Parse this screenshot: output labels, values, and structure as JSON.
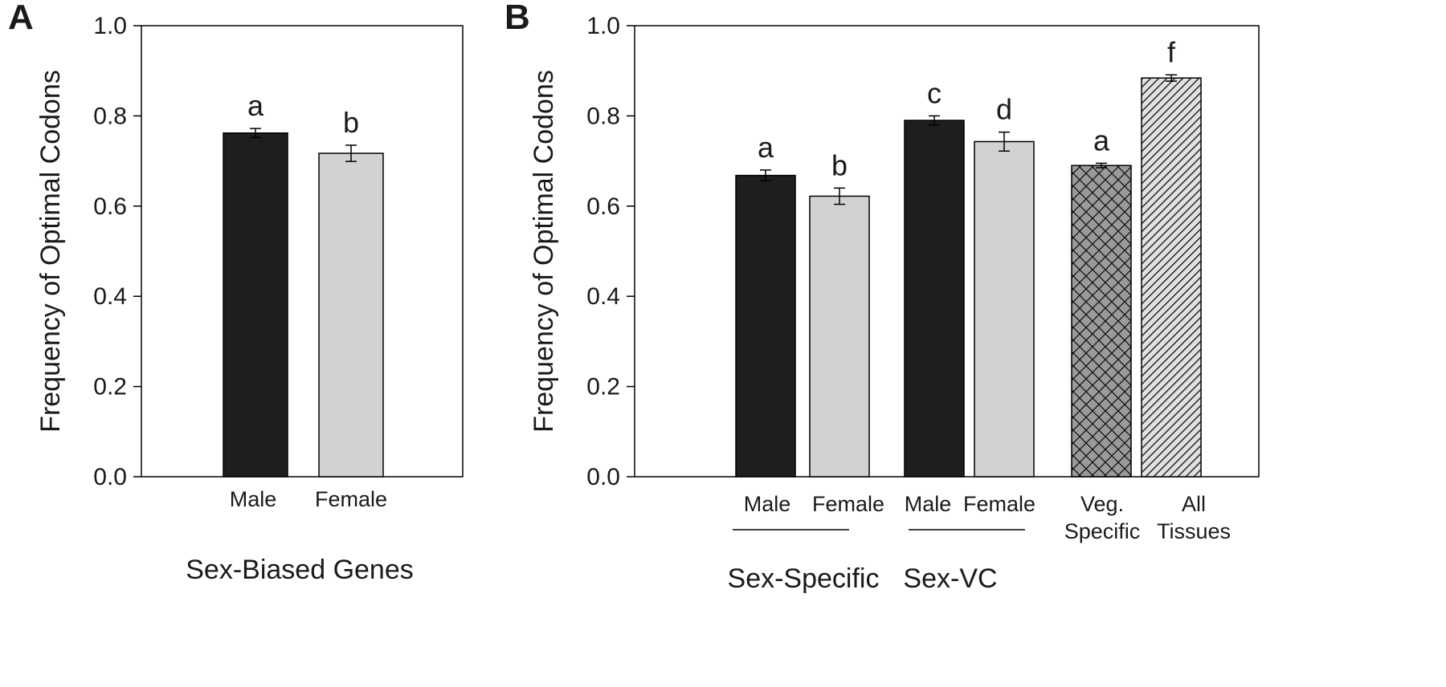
{
  "chart_data": [
    {
      "type": "bar",
      "panel": "A",
      "ylabel": "Frequency of Optimal Codons",
      "ylim": [
        0,
        1.0
      ],
      "yticks": [
        "0.0",
        "0.2",
        "0.4",
        "0.6",
        "0.8",
        "1.0"
      ],
      "group_label": "Sex-Biased Genes",
      "categories": [
        "Male",
        "Female"
      ],
      "values": [
        0.762,
        0.717
      ],
      "errors": [
        0.01,
        0.018
      ],
      "significance": [
        "a",
        "b"
      ],
      "fills": [
        "black",
        "lightgray"
      ]
    },
    {
      "type": "bar",
      "panel": "B",
      "ylabel": "Frequency of Optimal Codons",
      "ylim": [
        0,
        1.0
      ],
      "yticks": [
        "0.0",
        "0.2",
        "0.4",
        "0.6",
        "0.8",
        "1.0"
      ],
      "categories": [
        [
          "Male"
        ],
        [
          "Female"
        ],
        [
          "Male"
        ],
        [
          "Female"
        ],
        [
          "Veg.",
          "Specific"
        ],
        [
          "All",
          "Tissues"
        ]
      ],
      "values": [
        0.668,
        0.622,
        0.79,
        0.743,
        0.69,
        0.884
      ],
      "errors": [
        0.012,
        0.018,
        0.01,
        0.021,
        0.005,
        0.007
      ],
      "significance": [
        "a",
        "b",
        "c",
        "d",
        "a",
        "f"
      ],
      "fills": [
        "black",
        "lightgray",
        "black",
        "lightgray",
        "crosshatch",
        "diagonal"
      ],
      "group_labels": [
        "Sex-Specific",
        "Sex-VC"
      ]
    }
  ],
  "colors": {
    "black_bar": "#1e1e1e",
    "gray_bar": "#d2d2d2",
    "pattern_bar": "#9a9a9a",
    "axis": "#000000"
  }
}
